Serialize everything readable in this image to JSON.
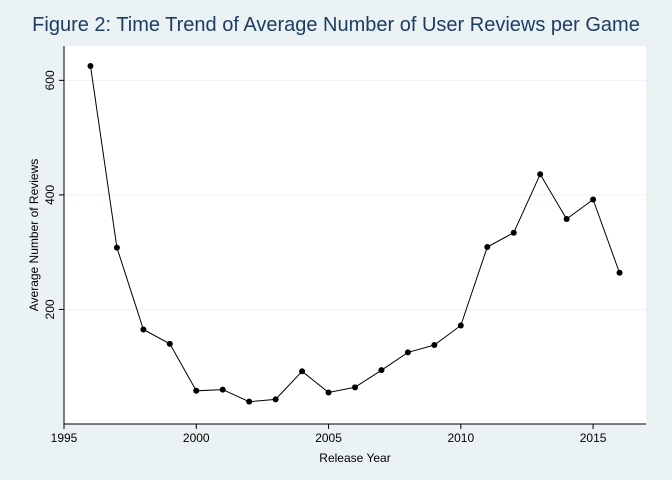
{
  "chart_data": {
    "type": "line",
    "title": "Figure 2: Time Trend of Average Number of User Reviews per Game",
    "xlabel": "Release Year",
    "ylabel": "Average Number of Reviews",
    "x": [
      1996,
      1997,
      1998,
      1999,
      2000,
      2001,
      2002,
      2003,
      2004,
      2005,
      2006,
      2007,
      2008,
      2009,
      2010,
      2011,
      2012,
      2013,
      2014,
      2015,
      2016
    ],
    "series": [
      {
        "values": [
          625,
          308,
          165,
          140,
          58,
          60,
          39,
          43,
          92,
          55,
          64,
          94,
          125,
          138,
          172,
          309,
          334,
          436,
          358,
          392,
          264
        ]
      }
    ],
    "xlim": [
      1995,
      2017
    ],
    "ylim": [
      0,
      660
    ],
    "xticks": [
      1995,
      2000,
      2005,
      2010,
      2015
    ],
    "yticks": [
      200,
      400,
      600
    ],
    "grid": "horizontal",
    "legend": "none",
    "colors": {
      "line": "#000000",
      "marker": "#000000",
      "background": "#eaf2f3",
      "plot_area": "#ffffff",
      "grid": "#eef3f4",
      "title": "#1e3c64"
    }
  }
}
